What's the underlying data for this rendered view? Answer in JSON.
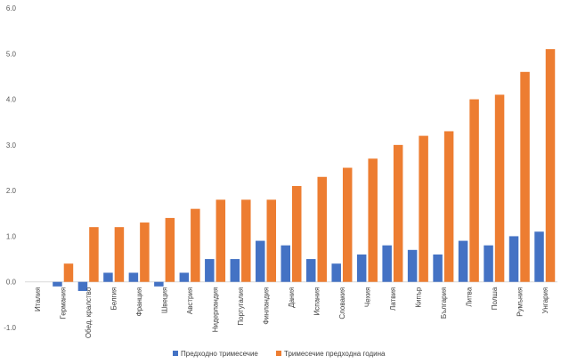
{
  "chart_data": {
    "type": "bar",
    "categories": [
      "Италия",
      "Германия",
      "Обед. кралство",
      "Белгия",
      "Франция",
      "Швеция",
      "Австрия",
      "Нидерландия",
      "Португалия",
      "Финландия",
      "Дания",
      "Испания",
      "Словакия",
      "Чехия",
      "Латвия",
      "Кипър",
      "България",
      "Литва",
      "Полша",
      "Румъния",
      "Унгария"
    ],
    "series": [
      {
        "name": "Предходно тримесечие",
        "color": "#4472c4",
        "values": [
          0.0,
          -0.1,
          -0.2,
          0.2,
          0.2,
          -0.1,
          0.2,
          0.5,
          0.5,
          0.9,
          0.8,
          0.5,
          0.4,
          0.6,
          0.8,
          0.7,
          0.6,
          0.9,
          0.8,
          1.0,
          1.1
        ]
      },
      {
        "name": "Тримесечие предходна година",
        "color": "#ed7d31",
        "values": [
          0.0,
          0.4,
          1.2,
          1.2,
          1.3,
          1.4,
          1.6,
          1.8,
          1.8,
          1.8,
          2.1,
          2.3,
          2.5,
          2.7,
          3.0,
          3.2,
          3.3,
          4.0,
          4.1,
          4.6,
          5.1
        ]
      }
    ],
    "ylim": [
      -1.0,
      6.0
    ],
    "yticks": [
      "-1.0",
      "0.0",
      "1.0",
      "2.0",
      "3.0",
      "4.0",
      "5.0",
      "6.0"
    ],
    "title": "",
    "xlabel": "",
    "ylabel": "",
    "legend_position": "bottom",
    "grid": false
  }
}
